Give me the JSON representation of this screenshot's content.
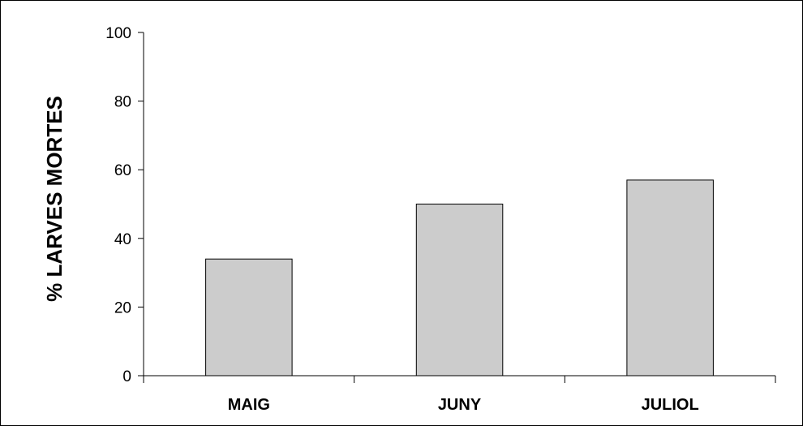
{
  "chart_data": {
    "type": "bar",
    "title": "",
    "xlabel": "",
    "ylabel": "% LARVES MORTES",
    "categories": [
      "MAIG",
      "JUNY",
      "JULIOL"
    ],
    "values": [
      34,
      50,
      57
    ],
    "ylim": [
      0,
      100
    ],
    "yticks": [
      0,
      20,
      40,
      60,
      80,
      100
    ],
    "grid": false,
    "legend": "none",
    "colors": {
      "bar_fill": "#cccccc",
      "bar_stroke": "#000000",
      "axis": "#000000"
    }
  }
}
